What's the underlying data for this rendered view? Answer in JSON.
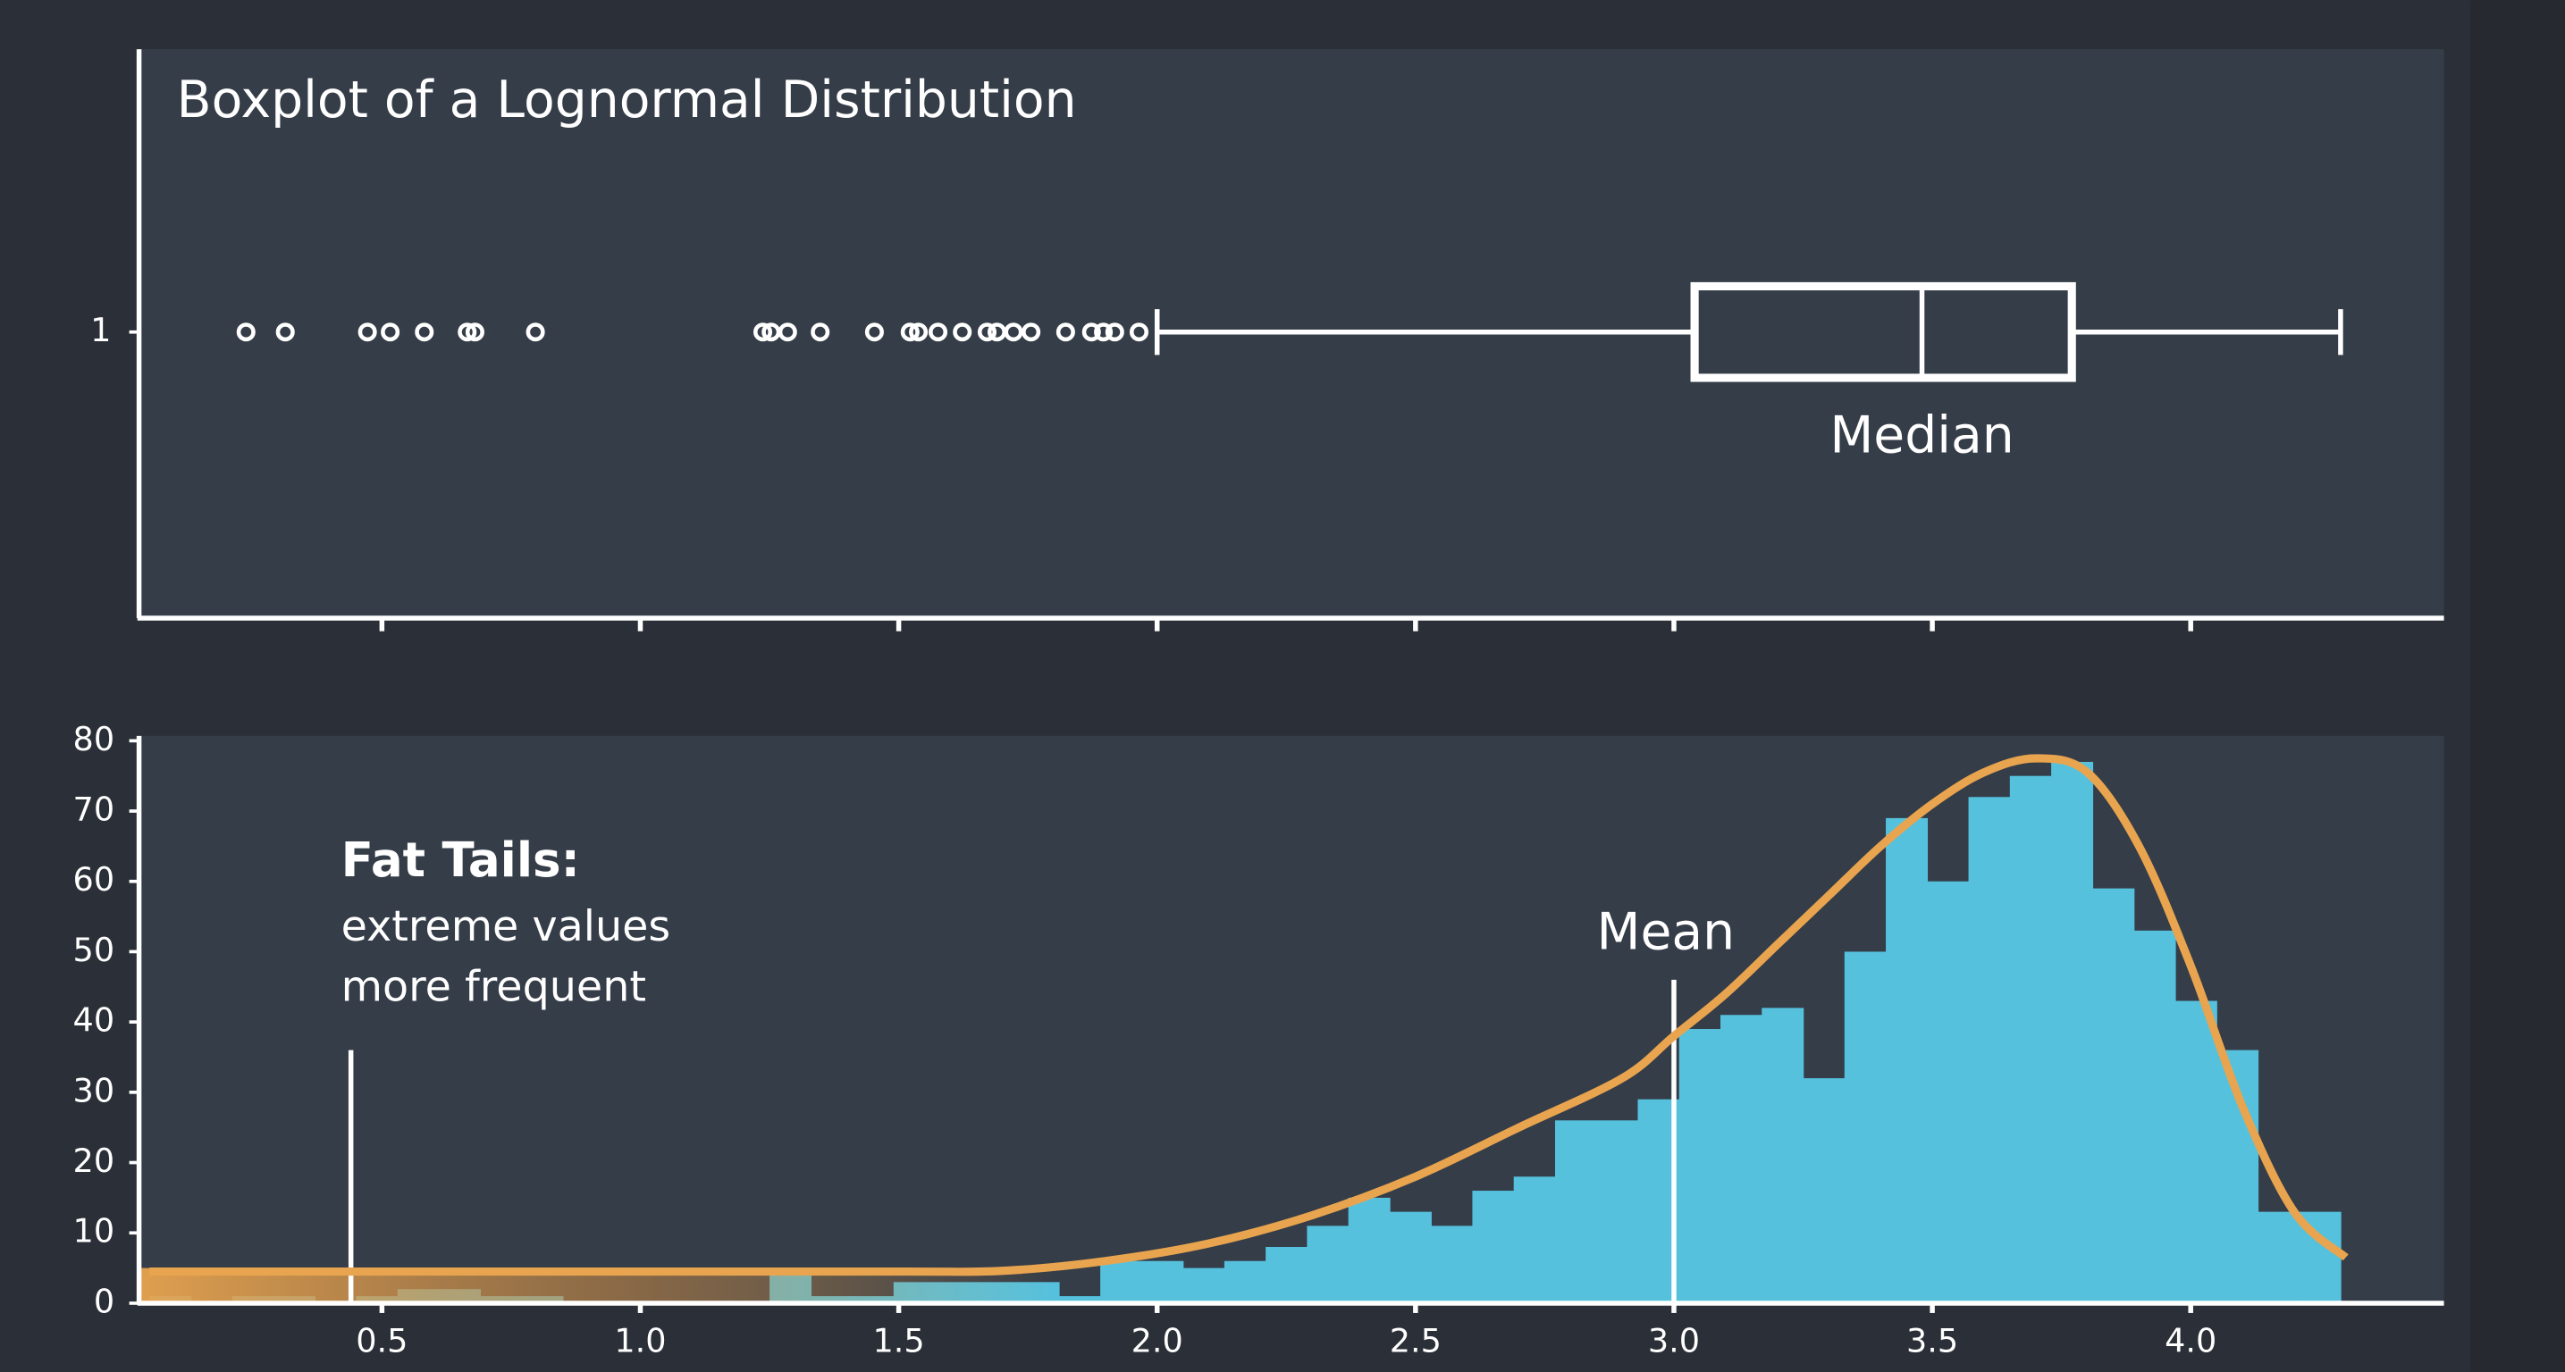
{
  "chart_data": [
    {
      "type": "boxplot",
      "title": "Boxplot of a Lognormal Distribution",
      "categories": [
        "1"
      ],
      "whisker_low": 2.0,
      "q1": 3.04,
      "median": 3.48,
      "q3": 3.77,
      "whisker_high": 4.29,
      "outliers": [
        0.237,
        0.313,
        0.472,
        0.516,
        0.582,
        0.665,
        0.68,
        0.797,
        1.237,
        1.253,
        1.285,
        1.348,
        1.453,
        1.522,
        1.538,
        1.576,
        1.623,
        1.671,
        1.69,
        1.722,
        1.756,
        1.823,
        1.873,
        1.896,
        1.918,
        1.965
      ],
      "median_label": "Median",
      "color": "#ffffff",
      "xlim": [
        0.03,
        4.49
      ],
      "xticks": [
        0.5,
        1,
        1.5,
        2,
        2.5,
        3,
        3.5,
        4
      ]
    },
    {
      "type": "histogram",
      "bins": [
        0.05,
        0.13,
        0.21,
        0.29,
        0.37,
        0.45,
        0.53,
        0.61,
        0.69,
        0.77,
        0.85,
        0.93,
        1.01,
        1.09,
        1.17,
        1.25,
        1.33,
        1.41,
        1.49,
        1.57,
        1.65,
        1.73,
        1.81,
        1.89,
        1.97,
        2.05,
        2.13,
        2.21,
        2.29,
        2.37,
        2.45,
        2.53,
        2.61,
        2.69,
        2.77,
        2.85,
        2.93,
        3.01,
        3.09,
        3.17,
        3.25,
        3.33,
        3.41,
        3.49,
        3.57,
        3.65,
        3.73,
        3.81,
        3.89,
        3.97,
        4.05,
        4.13,
        4.21,
        4.29
      ],
      "values": [
        1,
        0,
        1,
        1,
        0,
        1,
        2,
        2,
        1,
        1,
        0,
        0,
        0,
        0,
        0,
        4,
        1,
        1,
        3,
        3,
        3,
        3,
        1,
        6,
        6,
        5,
        6,
        8,
        11,
        15,
        13,
        11,
        16,
        18,
        26,
        26,
        29,
        39,
        41,
        42,
        32,
        50,
        69,
        60,
        72,
        75,
        77,
        59,
        53,
        43,
        36,
        13,
        13
      ],
      "color": "#56c1dd",
      "density": {
        "color": "#e8a44f",
        "x": [
          0.05,
          0.5,
          1.0,
          1.5,
          1.7,
          1.9,
          2.1,
          2.3,
          2.5,
          2.7,
          2.9,
          3.0,
          3.1,
          3.2,
          3.3,
          3.4,
          3.5,
          3.6,
          3.7,
          3.8,
          3.9,
          4.0,
          4.1,
          4.2,
          4.3
        ],
        "y": [
          4.5,
          4.5,
          4.5,
          4.5,
          4.6,
          6,
          8.5,
          12.5,
          18,
          25,
          32,
          38,
          44,
          51,
          58,
          65,
          71,
          75.5,
          77.5,
          75.5,
          65,
          48,
          28,
          13,
          6.5
        ]
      },
      "annotations": [
        {
          "title": "Fat Tails:",
          "lines": [
            "extreme values",
            "more frequent"
          ],
          "x": 0.44,
          "y": 36
        },
        {
          "title": "Mean",
          "x": 3.0,
          "y": 46
        }
      ],
      "xlim": [
        0.03,
        4.49
      ],
      "xticks": [
        0.5,
        {
          "value": 1,
          "label": "1.0"
        },
        1.5,
        {
          "value": 2,
          "label": "2.0"
        },
        2.5,
        {
          "value": 3,
          "label": "3.0"
        },
        3.5,
        {
          "value": 4,
          "label": "4.0"
        }
      ],
      "ylim": [
        0,
        80
      ],
      "yticks": [
        0,
        10,
        20,
        30,
        40,
        50,
        60,
        70,
        80
      ]
    }
  ]
}
